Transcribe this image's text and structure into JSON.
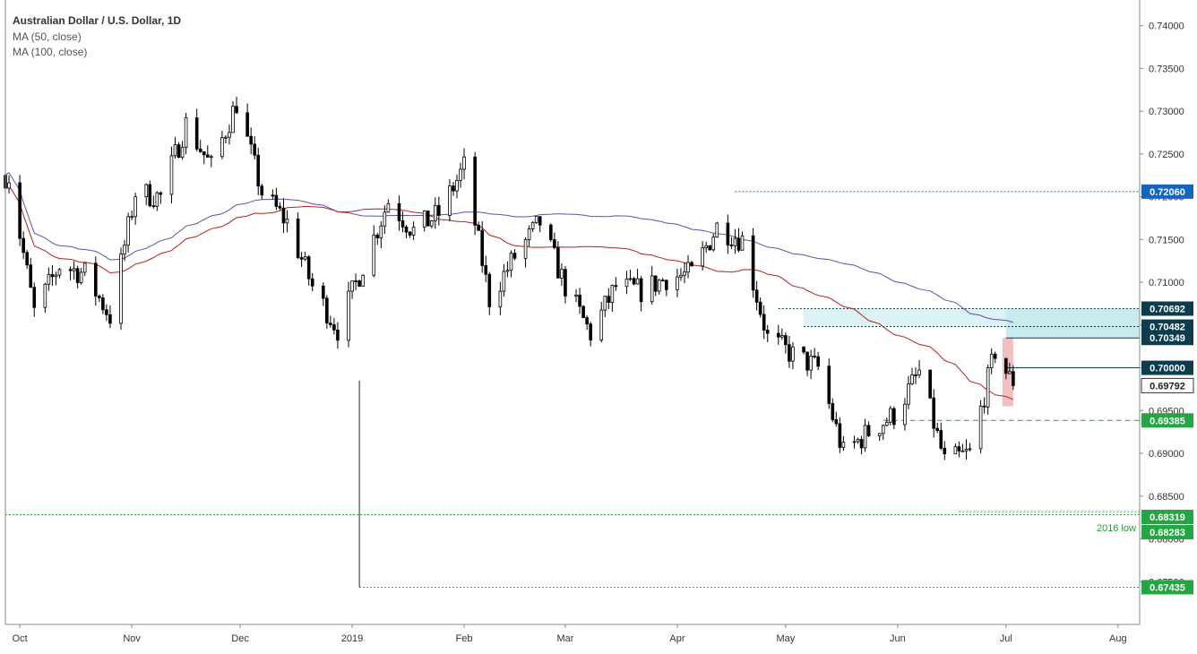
{
  "header": {
    "title": "Australian Dollar / U.S. Dollar, 1D",
    "ma_fast": "MA (50, close)",
    "ma_slow": "MA (100, close)"
  },
  "colors": {
    "up": "#ffffff",
    "down": "#000000",
    "ma_fast": "#b22222",
    "ma_slow": "#5555aa",
    "tag_blue": "#1565c0",
    "tag_dark": "#0d3d4d",
    "tag_green": "#26a544",
    "zone": "#9fdbe0",
    "reversal": "#e88a8a"
  },
  "chart_data": {
    "type": "candlestick",
    "title": "Australian Dollar / U.S. Dollar, 1D",
    "x_start": "2018-09-27",
    "x_end": "2019-08-07",
    "ylim": [
      0.67,
      0.743
    ],
    "y_ticks": [
      "0.74000",
      "0.73500",
      "0.73000",
      "0.72500",
      "0.72000",
      "0.71500",
      "0.71000",
      "0.70500",
      "0.70000",
      "0.69500",
      "0.69000",
      "0.68500",
      "0.68000",
      "0.67500"
    ],
    "x_ticks": [
      {
        "label": "Oct",
        "date": "2018-10-01"
      },
      {
        "label": "Nov",
        "date": "2018-11-01"
      },
      {
        "label": "Dec",
        "date": "2018-12-01"
      },
      {
        "label": "2019",
        "date": "2019-01-01"
      },
      {
        "label": "Feb",
        "date": "2019-02-01"
      },
      {
        "label": "Mar",
        "date": "2019-03-01"
      },
      {
        "label": "Apr",
        "date": "2019-04-01"
      },
      {
        "label": "May",
        "date": "2019-05-01"
      },
      {
        "label": "Jun",
        "date": "2019-06-01"
      },
      {
        "label": "Jul",
        "date": "2019-07-01"
      },
      {
        "label": "Aug",
        "date": "2019-08-01"
      }
    ],
    "weekly_closes": [
      {
        "date": "2018-09-28",
        "close": 0.7225
      },
      {
        "date": "2018-10-05",
        "close": 0.7065
      },
      {
        "date": "2018-10-12",
        "close": 0.712
      },
      {
        "date": "2018-10-19",
        "close": 0.711
      },
      {
        "date": "2018-10-26",
        "close": 0.706
      },
      {
        "date": "2018-11-02",
        "close": 0.7205
      },
      {
        "date": "2018-11-09",
        "close": 0.72
      },
      {
        "date": "2018-11-16",
        "close": 0.7285
      },
      {
        "date": "2018-11-23",
        "close": 0.7235
      },
      {
        "date": "2018-11-30",
        "close": 0.731
      },
      {
        "date": "2018-12-07",
        "close": 0.7205
      },
      {
        "date": "2018-12-14",
        "close": 0.717
      },
      {
        "date": "2018-12-21",
        "close": 0.7095
      },
      {
        "date": "2018-12-28",
        "close": 0.7045
      },
      {
        "date": "2019-01-04",
        "close": 0.712
      },
      {
        "date": "2019-01-11",
        "close": 0.7195
      },
      {
        "date": "2019-01-18",
        "close": 0.716
      },
      {
        "date": "2019-01-25",
        "close": 0.718
      },
      {
        "date": "2019-02-01",
        "close": 0.7235
      },
      {
        "date": "2019-02-08",
        "close": 0.708
      },
      {
        "date": "2019-02-15",
        "close": 0.713
      },
      {
        "date": "2019-02-22",
        "close": 0.717
      },
      {
        "date": "2019-03-01",
        "close": 0.7095
      },
      {
        "date": "2019-03-08",
        "close": 0.704
      },
      {
        "date": "2019-03-15",
        "close": 0.7095
      },
      {
        "date": "2019-03-22",
        "close": 0.709
      },
      {
        "date": "2019-03-29",
        "close": 0.7105
      },
      {
        "date": "2019-04-05",
        "close": 0.711
      },
      {
        "date": "2019-04-12",
        "close": 0.7165
      },
      {
        "date": "2019-04-19",
        "close": 0.715
      },
      {
        "date": "2019-04-26",
        "close": 0.7035
      },
      {
        "date": "2019-05-03",
        "close": 0.7015
      },
      {
        "date": "2019-05-10",
        "close": 0.7
      },
      {
        "date": "2019-05-17",
        "close": 0.69
      },
      {
        "date": "2019-05-24",
        "close": 0.6925
      },
      {
        "date": "2019-05-31",
        "close": 0.6945
      },
      {
        "date": "2019-06-07",
        "close": 0.6995
      },
      {
        "date": "2019-06-14",
        "close": 0.689
      },
      {
        "date": "2019-06-21",
        "close": 0.69
      },
      {
        "date": "2019-06-28",
        "close": 0.702
      },
      {
        "date": "2019-07-03",
        "close": 0.6979
      }
    ],
    "reference_levels": [
      {
        "label": "0.72060",
        "value": 0.7206,
        "style": "blue",
        "from": "2019-04-17"
      },
      {
        "label": "0.70692",
        "value": 0.70692,
        "style": "dark",
        "from": "2019-04-29"
      },
      {
        "label": "0.70482",
        "value": 0.70482,
        "style": "dark",
        "from": "2019-05-06"
      },
      {
        "label": "0.70349",
        "value": 0.70349,
        "style": "dark",
        "from": "2019-07-01"
      },
      {
        "label": "0.70000",
        "value": 0.7,
        "style": "dark",
        "from": "2019-07-01"
      },
      {
        "label": "0.69385",
        "value": 0.69385,
        "style": "green",
        "from": "2019-05-28"
      },
      {
        "label": "0.68319",
        "value": 0.68319,
        "style": "green",
        "from": "2019-06-18"
      },
      {
        "label": "0.68283",
        "value": 0.68283,
        "style": "green",
        "from": "2018-09-27"
      },
      {
        "label": "0.67435",
        "value": 0.67435,
        "style": "green",
        "from": "2019-01-03"
      }
    ],
    "current_price": {
      "label": "0.69792",
      "value": 0.69792
    },
    "annotation": "2016 low"
  }
}
